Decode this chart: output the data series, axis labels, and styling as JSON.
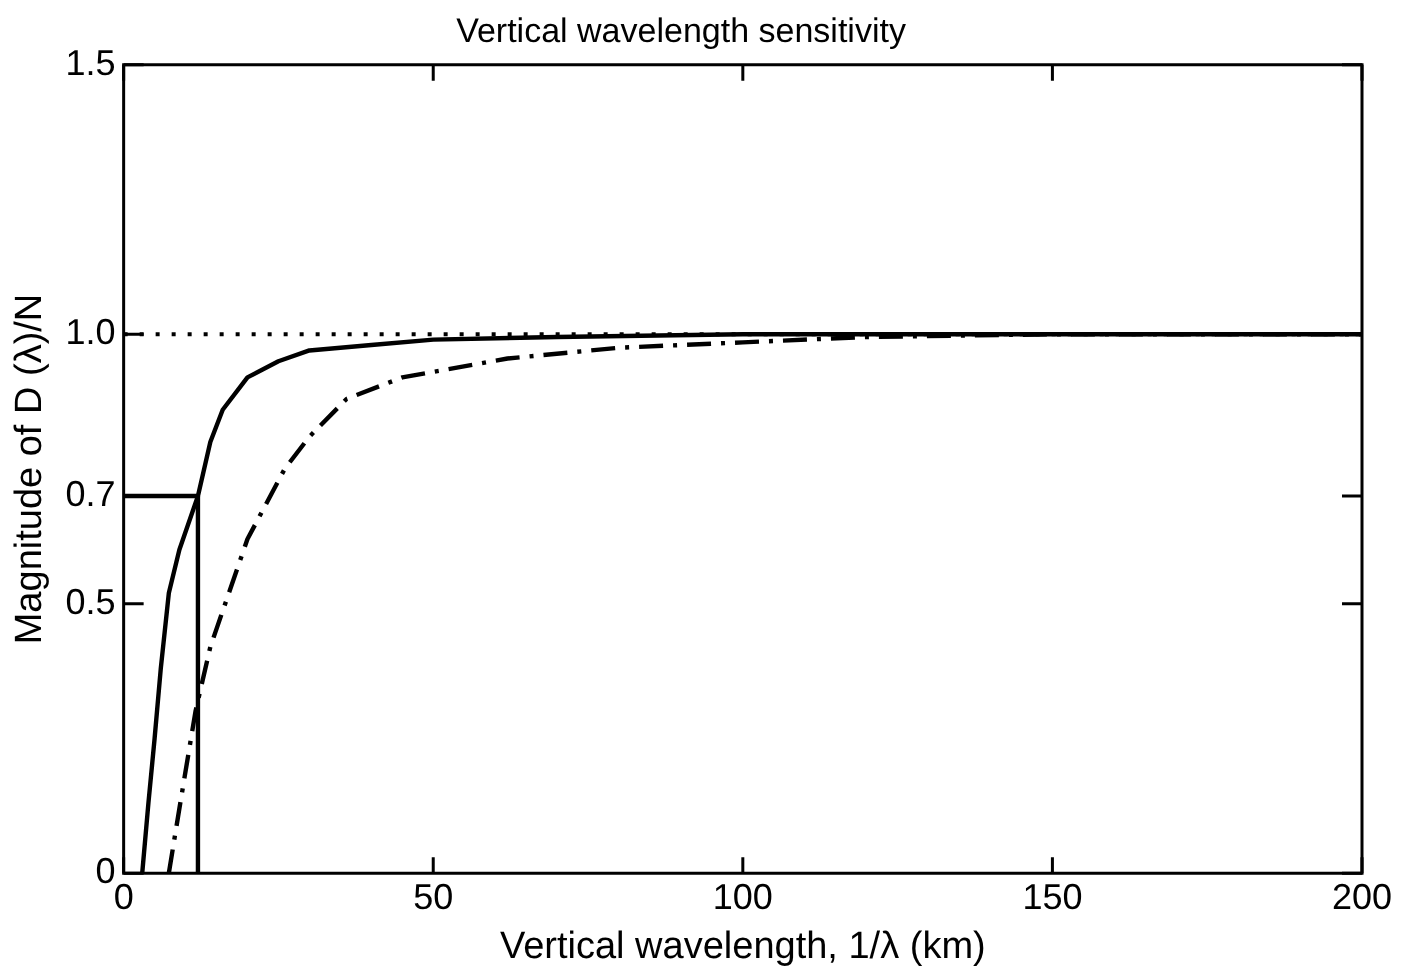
{
  "chart_data": {
    "type": "line",
    "title": "Vertical wavelength sensitivity",
    "xlabel": "Vertical wavelength, 1/λ (km)",
    "ylabel": "Magnitude of D (λ)/N",
    "xlim": [
      0,
      200
    ],
    "xticks": [
      0,
      50,
      100,
      150,
      200
    ],
    "ylim": [
      0,
      1.5
    ],
    "yticks": [
      0,
      0.5,
      0.7,
      {
        "value": 1,
        "label": "1.0"
      },
      {
        "value": 1.5,
        "label": "1.5"
      }
    ],
    "grid": false,
    "legend": false,
    "marker": "none",
    "series": [
      {
        "color": "#000000",
        "line_style": "solid",
        "x": [
          3,
          4,
          5,
          6,
          7.3,
          9,
          12,
          14,
          16,
          20,
          25,
          30,
          40,
          50,
          70,
          100,
          150,
          200
        ],
        "values": [
          0,
          0.13,
          0.25,
          0.38,
          0.52,
          0.6,
          0.7,
          0.8,
          0.86,
          0.92,
          0.95,
          0.97,
          0.98,
          0.99,
          0.995,
          1,
          1,
          1
        ]
      },
      {
        "color": "#000000",
        "line_style": "dashed",
        "x": [
          7.3,
          9,
          11.6,
          14,
          17,
          20,
          26,
          30,
          36,
          45,
          62,
          80,
          100,
          120,
          150,
          200
        ],
        "values": [
          0,
          0.12,
          0.3,
          0.42,
          0.52,
          0.62,
          0.75,
          0.81,
          0.88,
          0.92,
          0.955,
          0.975,
          0.985,
          0.995,
          1,
          1
        ]
      },
      {
        "color": "#000000",
        "line_style": "solid",
        "x": [
          0,
          12,
          12
        ],
        "values": [
          0.7,
          0.7,
          0
        ]
      }
    ],
    "ref_lines": [
      {
        "axis": "y",
        "value": 1,
        "line_style": "dotted",
        "color": "#000000"
      }
    ]
  }
}
